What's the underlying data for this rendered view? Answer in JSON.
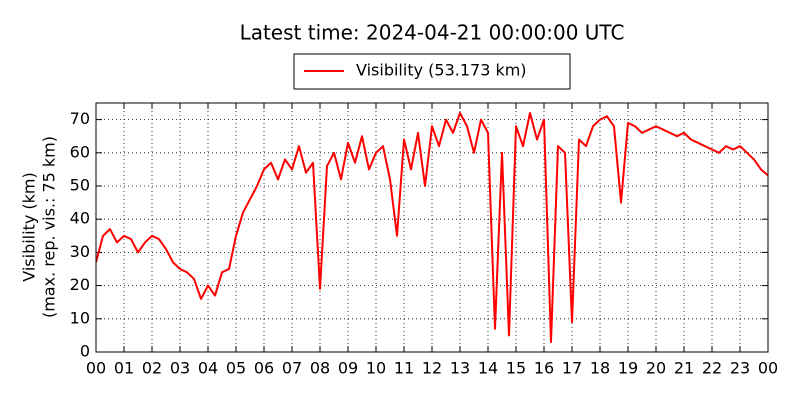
{
  "chart_data": {
    "type": "line",
    "title": "Latest time: 2024-04-21 00:00:00 UTC",
    "ylabel_lines": [
      "Visibility (km)",
      "(max. rep. vis.: 75 km)"
    ],
    "x": [
      0,
      0.25,
      0.5,
      0.75,
      1,
      1.25,
      1.5,
      1.75,
      2,
      2.25,
      2.5,
      2.75,
      3,
      3.25,
      3.5,
      3.75,
      4,
      4.25,
      4.5,
      4.75,
      5,
      5.25,
      5.5,
      5.75,
      6,
      6.25,
      6.5,
      6.75,
      7,
      7.25,
      7.5,
      7.75,
      8,
      8.25,
      8.5,
      8.75,
      9,
      9.25,
      9.5,
      9.75,
      10,
      10.25,
      10.5,
      10.75,
      11,
      11.25,
      11.5,
      11.75,
      12,
      12.25,
      12.5,
      12.75,
      13,
      13.25,
      13.5,
      13.75,
      14,
      14.25,
      14.5,
      14.75,
      15,
      15.25,
      15.5,
      15.75,
      16,
      16.25,
      16.5,
      16.75,
      17,
      17.25,
      17.5,
      17.75,
      18,
      18.25,
      18.5,
      18.75,
      19,
      19.25,
      19.5,
      19.75,
      20,
      20.25,
      20.5,
      20.75,
      21,
      21.25,
      21.5,
      21.75,
      22,
      22.25,
      22.5,
      22.75,
      23,
      23.25,
      23.5,
      23.75,
      24
    ],
    "series": [
      {
        "name": "Visibility (53.173 km)",
        "color": "#ff0000",
        "values": [
          27,
          35,
          37,
          33,
          35,
          34,
          30,
          33,
          35,
          34,
          31,
          27,
          25,
          24,
          22,
          16,
          20,
          17,
          24,
          25,
          35,
          42,
          46,
          50,
          55,
          57,
          52,
          58,
          55,
          62,
          54,
          57,
          19,
          56,
          60,
          52,
          63,
          57,
          65,
          55,
          60,
          62,
          52,
          35,
          64,
          55,
          66,
          50,
          68,
          62,
          70,
          66,
          72,
          68,
          60,
          70,
          66,
          7,
          60,
          5,
          68,
          62,
          72,
          64,
          70,
          3,
          62,
          60,
          9,
          64,
          62,
          68,
          70,
          71,
          68,
          45,
          69,
          68,
          66,
          67,
          68,
          67,
          66,
          65,
          66,
          64,
          63,
          62,
          61,
          60,
          62,
          61,
          62,
          60,
          58,
          55,
          53.173
        ]
      }
    ],
    "xlim": [
      0,
      24
    ],
    "ylim": [
      0,
      75
    ],
    "xticks": [
      {
        "value": 0,
        "label": "00"
      },
      {
        "value": 1,
        "label": "01"
      },
      {
        "value": 2,
        "label": "02"
      },
      {
        "value": 3,
        "label": "03"
      },
      {
        "value": 4,
        "label": "04"
      },
      {
        "value": 5,
        "label": "05"
      },
      {
        "value": 6,
        "label": "06"
      },
      {
        "value": 7,
        "label": "07"
      },
      {
        "value": 8,
        "label": "08"
      },
      {
        "value": 9,
        "label": "09"
      },
      {
        "value": 10,
        "label": "10"
      },
      {
        "value": 11,
        "label": "11"
      },
      {
        "value": 12,
        "label": "12"
      },
      {
        "value": 13,
        "label": "13"
      },
      {
        "value": 14,
        "label": "14"
      },
      {
        "value": 15,
        "label": "15"
      },
      {
        "value": 16,
        "label": "16"
      },
      {
        "value": 17,
        "label": "17"
      },
      {
        "value": 18,
        "label": "18"
      },
      {
        "value": 19,
        "label": "19"
      },
      {
        "value": 20,
        "label": "20"
      },
      {
        "value": 21,
        "label": "21"
      },
      {
        "value": 22,
        "label": "22"
      },
      {
        "value": 23,
        "label": "23"
      },
      {
        "value": 24,
        "label": "00"
      }
    ],
    "yticks": [
      0,
      10,
      20,
      30,
      40,
      50,
      60,
      70
    ],
    "grid": true
  }
}
